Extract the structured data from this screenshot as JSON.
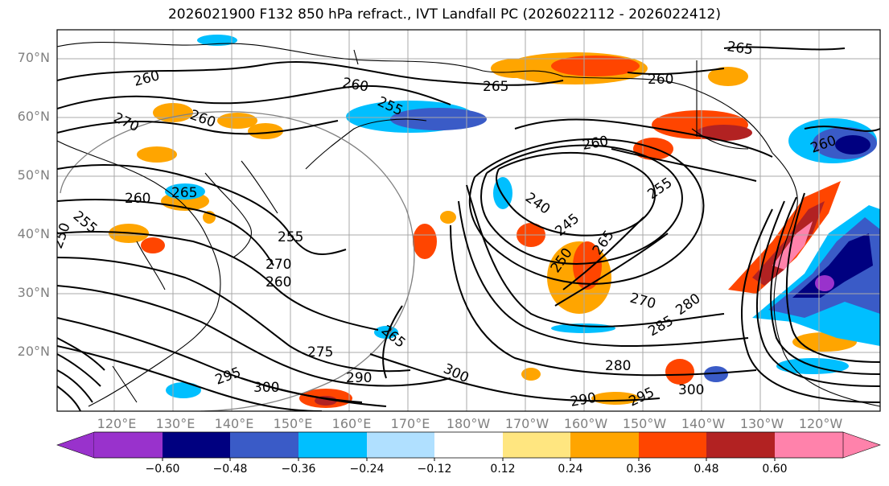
{
  "title": "2026021900 F132 850 hPa refract., IVT Landfall PC (2026022112 - 2026022412)",
  "lat_labels": [
    "70°N",
    "60°N",
    "50°N",
    "40°N",
    "30°N",
    "20°N"
  ],
  "lon_labels": [
    "120°E",
    "130°E",
    "140°E",
    "150°E",
    "160°E",
    "170°E",
    "180°W",
    "170°W",
    "160°W",
    "150°W",
    "140°W",
    "130°W",
    "120°W"
  ],
  "contour_labels": [
    "265",
    "260",
    "260",
    "260",
    "265",
    "255",
    "260",
    "270",
    "260",
    "265",
    "260",
    "260",
    "240",
    "245",
    "255",
    "255",
    "250",
    "255",
    "270",
    "260",
    "250",
    "265",
    "270",
    "280",
    "285",
    "275",
    "265",
    "295",
    "300",
    "290",
    "300",
    "280",
    "290",
    "295",
    "300"
  ],
  "colorbar": {
    "colors": [
      "#9932cc",
      "#000080",
      "#3a5bc7",
      "#00bfff",
      "#b0e0ff",
      "#ffffff",
      "#ffe680",
      "#ffa500",
      "#ff4500",
      "#b22222",
      "#ff82ab"
    ],
    "ticks": [
      "−0.60",
      "−0.48",
      "−0.36",
      "−0.24",
      "−0.12",
      "0.12",
      "0.24",
      "0.36",
      "0.48",
      "0.60"
    ]
  }
}
